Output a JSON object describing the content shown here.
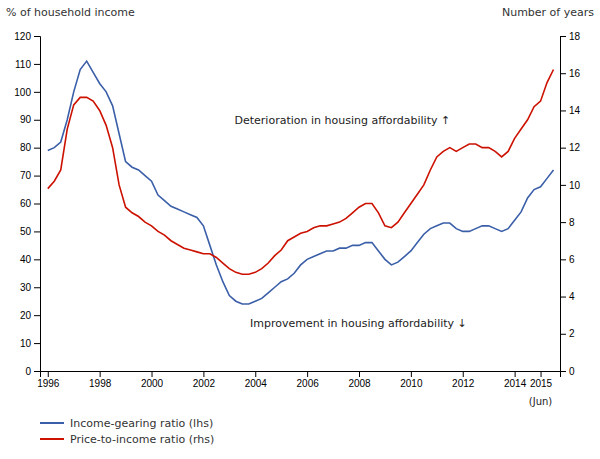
{
  "chart_data": {
    "type": "line",
    "y_label": "% of household income",
    "y2_label": "Number of years",
    "x": [
      1996.0,
      1996.25,
      1996.5,
      1996.75,
      1997.0,
      1997.25,
      1997.5,
      1997.75,
      1998.0,
      1998.25,
      1998.5,
      1998.75,
      1999.0,
      1999.25,
      1999.5,
      1999.75,
      2000.0,
      2000.25,
      2000.5,
      2000.75,
      2001.0,
      2001.25,
      2001.5,
      2001.75,
      2002.0,
      2002.25,
      2002.5,
      2002.75,
      2003.0,
      2003.25,
      2003.5,
      2003.75,
      2004.0,
      2004.25,
      2004.5,
      2004.75,
      2005.0,
      2005.25,
      2005.5,
      2005.75,
      2006.0,
      2006.25,
      2006.5,
      2006.75,
      2007.0,
      2007.25,
      2007.5,
      2007.75,
      2008.0,
      2008.25,
      2008.5,
      2008.75,
      2009.0,
      2009.25,
      2009.5,
      2009.75,
      2010.0,
      2010.25,
      2010.5,
      2010.75,
      2011.0,
      2011.25,
      2011.5,
      2011.75,
      2012.0,
      2012.25,
      2012.5,
      2012.75,
      2013.0,
      2013.25,
      2013.5,
      2013.75,
      2014.0,
      2014.25,
      2014.5,
      2014.75,
      2015.0,
      2015.25,
      2015.5
    ],
    "series": [
      {
        "name": "Income-gearing ratio (lhs)",
        "color": "#3a5fa8",
        "values": [
          79,
          80,
          82,
          90,
          100,
          108,
          111,
          107,
          103,
          100,
          95,
          85,
          75,
          73,
          72,
          70,
          68,
          63,
          61,
          59,
          58,
          57,
          56,
          55,
          52,
          45,
          38,
          32,
          27,
          25,
          24,
          24,
          25,
          26,
          28,
          30,
          32,
          33,
          35,
          38,
          40,
          41,
          42,
          43,
          43,
          44,
          44,
          45,
          45,
          46,
          46,
          43,
          40,
          38,
          39,
          41,
          43,
          46,
          49,
          51,
          52,
          53,
          53,
          51,
          50,
          50,
          51,
          52,
          52,
          51,
          50,
          51,
          54,
          57,
          62,
          65,
          66,
          69,
          72
        ]
      },
      {
        "name": "Price-to-income ratio (rhs)",
        "color": "#cc1100",
        "axis": "y2",
        "values": [
          9.8,
          10.2,
          10.8,
          13.0,
          14.3,
          14.7,
          14.7,
          14.5,
          14.0,
          13.2,
          12.0,
          10.0,
          8.8,
          8.5,
          8.3,
          8.0,
          7.8,
          7.5,
          7.3,
          7.0,
          6.8,
          6.6,
          6.5,
          6.4,
          6.3,
          6.3,
          6.1,
          5.8,
          5.5,
          5.3,
          5.2,
          5.2,
          5.3,
          5.5,
          5.8,
          6.2,
          6.5,
          7.0,
          7.2,
          7.4,
          7.5,
          7.7,
          7.8,
          7.8,
          7.9,
          8.0,
          8.2,
          8.5,
          8.8,
          9.0,
          9.0,
          8.5,
          7.8,
          7.7,
          8.0,
          8.5,
          9.0,
          9.5,
          10.0,
          10.8,
          11.5,
          11.8,
          12.0,
          11.8,
          12.0,
          12.2,
          12.2,
          12.0,
          12.0,
          11.8,
          11.5,
          11.8,
          12.5,
          13.0,
          13.5,
          14.2,
          14.5,
          15.5,
          16.2
        ]
      }
    ],
    "xlim": [
      1995.7,
      2015.75
    ],
    "xticks": [
      1996,
      1998,
      2000,
      2002,
      2004,
      2006,
      2008,
      2010,
      2012,
      2014,
      2015
    ],
    "ylim": [
      0,
      120
    ],
    "yticks": [
      0,
      10,
      20,
      30,
      40,
      50,
      60,
      70,
      80,
      90,
      100,
      110,
      120
    ],
    "y2lim": [
      0,
      18
    ],
    "y2ticks": [
      0,
      2,
      4,
      6,
      8,
      10,
      12,
      14,
      16,
      18
    ],
    "annotations": [
      {
        "text": "Deterioration in housing affordability ↑",
        "x": 2003.2,
        "y": 90
      },
      {
        "text": "Improvement in housing affordability ↓",
        "x": 2003.8,
        "y": 17
      },
      {
        "text": "(Jun)",
        "x": 2015
      }
    ],
    "grid": false,
    "legend": "bottom"
  }
}
